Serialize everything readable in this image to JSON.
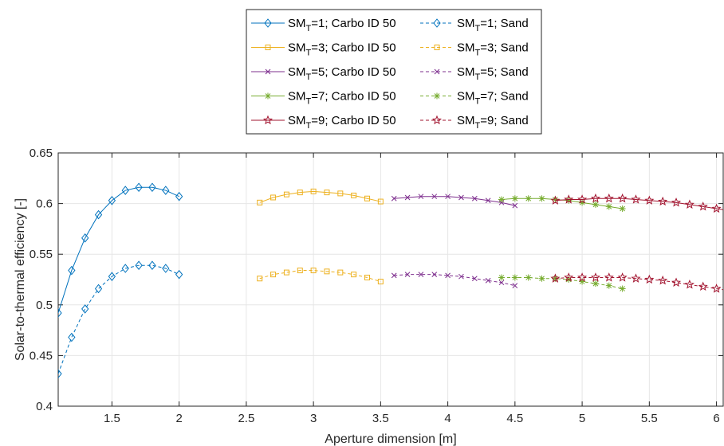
{
  "chart_data": {
    "type": "line",
    "xlabel": "Aperture dimension [m]",
    "ylabel": "Solar-to-thermal efficiency [-]",
    "xlim": [
      1.1,
      6.05
    ],
    "ylim": [
      0.4,
      0.65
    ],
    "xticks": [
      1.5,
      2,
      2.5,
      3,
      3.5,
      4,
      4.5,
      5,
      5.5,
      6
    ],
    "yticks": [
      0.4,
      0.45,
      0.5,
      0.55,
      0.6,
      0.65
    ],
    "grid": true,
    "legend_position": "top-center, outside plot",
    "legend": [
      {
        "prefix": "SM",
        "sub": "T",
        "suffix": "=1; Carbo ID 50"
      },
      {
        "prefix": "SM",
        "sub": "T",
        "suffix": "=1; Sand"
      },
      {
        "prefix": "SM",
        "sub": "T",
        "suffix": "=3;  Carbo ID 50"
      },
      {
        "prefix": "SM",
        "sub": "T",
        "suffix": "=3; Sand"
      },
      {
        "prefix": "SM",
        "sub": "T",
        "suffix": "=5; Carbo ID 50"
      },
      {
        "prefix": "SM",
        "sub": "T",
        "suffix": "=5; Sand"
      },
      {
        "prefix": "SM",
        "sub": "T",
        "suffix": "=7; Carbo ID 50"
      },
      {
        "prefix": "SM",
        "sub": "T",
        "suffix": "=7; Sand"
      },
      {
        "prefix": "SM",
        "sub": "T",
        "suffix": "=9; Carbo ID 50"
      },
      {
        "prefix": "SM",
        "sub": "T",
        "suffix": "=9; Sand"
      }
    ],
    "series": [
      {
        "name": "SMT=1; Carbo ID 50",
        "color": "#0072BD",
        "marker": "diamond",
        "dash": "solid",
        "x": [
          1.1,
          1.2,
          1.3,
          1.4,
          1.5,
          1.6,
          1.7,
          1.8,
          1.9,
          2.0
        ],
        "y": [
          0.492,
          0.534,
          0.566,
          0.589,
          0.603,
          0.613,
          0.616,
          0.616,
          0.613,
          0.607
        ]
      },
      {
        "name": "SMT=1; Sand",
        "color": "#0072BD",
        "marker": "diamond",
        "dash": "dashed",
        "x": [
          1.1,
          1.2,
          1.3,
          1.4,
          1.5,
          1.6,
          1.7,
          1.8,
          1.9,
          2.0
        ],
        "y": [
          0.432,
          0.468,
          0.496,
          0.516,
          0.528,
          0.536,
          0.539,
          0.539,
          0.536,
          0.53
        ]
      },
      {
        "name": "SMT=3; Carbo ID 50",
        "color": "#EDB120",
        "marker": "square",
        "dash": "solid",
        "x": [
          2.6,
          2.7,
          2.8,
          2.9,
          3.0,
          3.1,
          3.2,
          3.3,
          3.4,
          3.5
        ],
        "y": [
          0.601,
          0.606,
          0.609,
          0.611,
          0.612,
          0.611,
          0.61,
          0.608,
          0.605,
          0.602
        ]
      },
      {
        "name": "SMT=3; Sand",
        "color": "#EDB120",
        "marker": "square",
        "dash": "dashed",
        "x": [
          2.6,
          2.7,
          2.8,
          2.9,
          3.0,
          3.1,
          3.2,
          3.3,
          3.4,
          3.5
        ],
        "y": [
          0.526,
          0.53,
          0.532,
          0.534,
          0.534,
          0.533,
          0.532,
          0.53,
          0.527,
          0.523
        ]
      },
      {
        "name": "SMT=5; Carbo ID 50",
        "color": "#7E2F8E",
        "marker": "x",
        "dash": "solid",
        "x": [
          3.6,
          3.7,
          3.8,
          3.9,
          4.0,
          4.1,
          4.2,
          4.3,
          4.4,
          4.5
        ],
        "y": [
          0.605,
          0.606,
          0.607,
          0.607,
          0.607,
          0.606,
          0.605,
          0.603,
          0.601,
          0.598
        ]
      },
      {
        "name": "SMT=5; Sand",
        "color": "#7E2F8E",
        "marker": "x",
        "dash": "dashed",
        "x": [
          3.6,
          3.7,
          3.8,
          3.9,
          4.0,
          4.1,
          4.2,
          4.3,
          4.4,
          4.5
        ],
        "y": [
          0.529,
          0.53,
          0.53,
          0.53,
          0.529,
          0.528,
          0.526,
          0.524,
          0.522,
          0.519
        ]
      },
      {
        "name": "SMT=7; Carbo ID 50",
        "color": "#77AC30",
        "marker": "asterisk",
        "dash": "solid",
        "x": [
          4.4,
          4.5,
          4.6,
          4.7,
          4.8,
          4.9,
          5.0,
          5.1,
          5.2,
          5.3
        ],
        "y": [
          0.604,
          0.605,
          0.605,
          0.605,
          0.604,
          0.603,
          0.601,
          0.599,
          0.597,
          0.595
        ]
      },
      {
        "name": "SMT=7; Sand",
        "color": "#77AC30",
        "marker": "asterisk",
        "dash": "dashed",
        "x": [
          4.4,
          4.5,
          4.6,
          4.7,
          4.8,
          4.9,
          5.0,
          5.1,
          5.2,
          5.3
        ],
        "y": [
          0.527,
          0.527,
          0.527,
          0.526,
          0.526,
          0.525,
          0.523,
          0.521,
          0.519,
          0.516
        ]
      },
      {
        "name": "SMT=9; Carbo ID 50",
        "color": "#A2142F",
        "marker": "star",
        "dash": "solid",
        "x": [
          4.8,
          4.9,
          5.0,
          5.1,
          5.2,
          5.3,
          5.4,
          5.5,
          5.6,
          5.7,
          5.8,
          5.9,
          6.0,
          6.1
        ],
        "y": [
          0.603,
          0.604,
          0.604,
          0.605,
          0.605,
          0.605,
          0.604,
          0.603,
          0.602,
          0.601,
          0.599,
          0.597,
          0.595,
          0.593
        ]
      },
      {
        "name": "SMT=9; Sand",
        "color": "#A2142F",
        "marker": "star",
        "dash": "dashed",
        "x": [
          4.8,
          4.9,
          5.0,
          5.1,
          5.2,
          5.3,
          5.4,
          5.5,
          5.6,
          5.7,
          5.8,
          5.9,
          6.0,
          6.1
        ],
        "y": [
          0.526,
          0.527,
          0.527,
          0.527,
          0.527,
          0.527,
          0.526,
          0.525,
          0.524,
          0.522,
          0.52,
          0.518,
          0.516,
          0.514
        ]
      }
    ]
  }
}
